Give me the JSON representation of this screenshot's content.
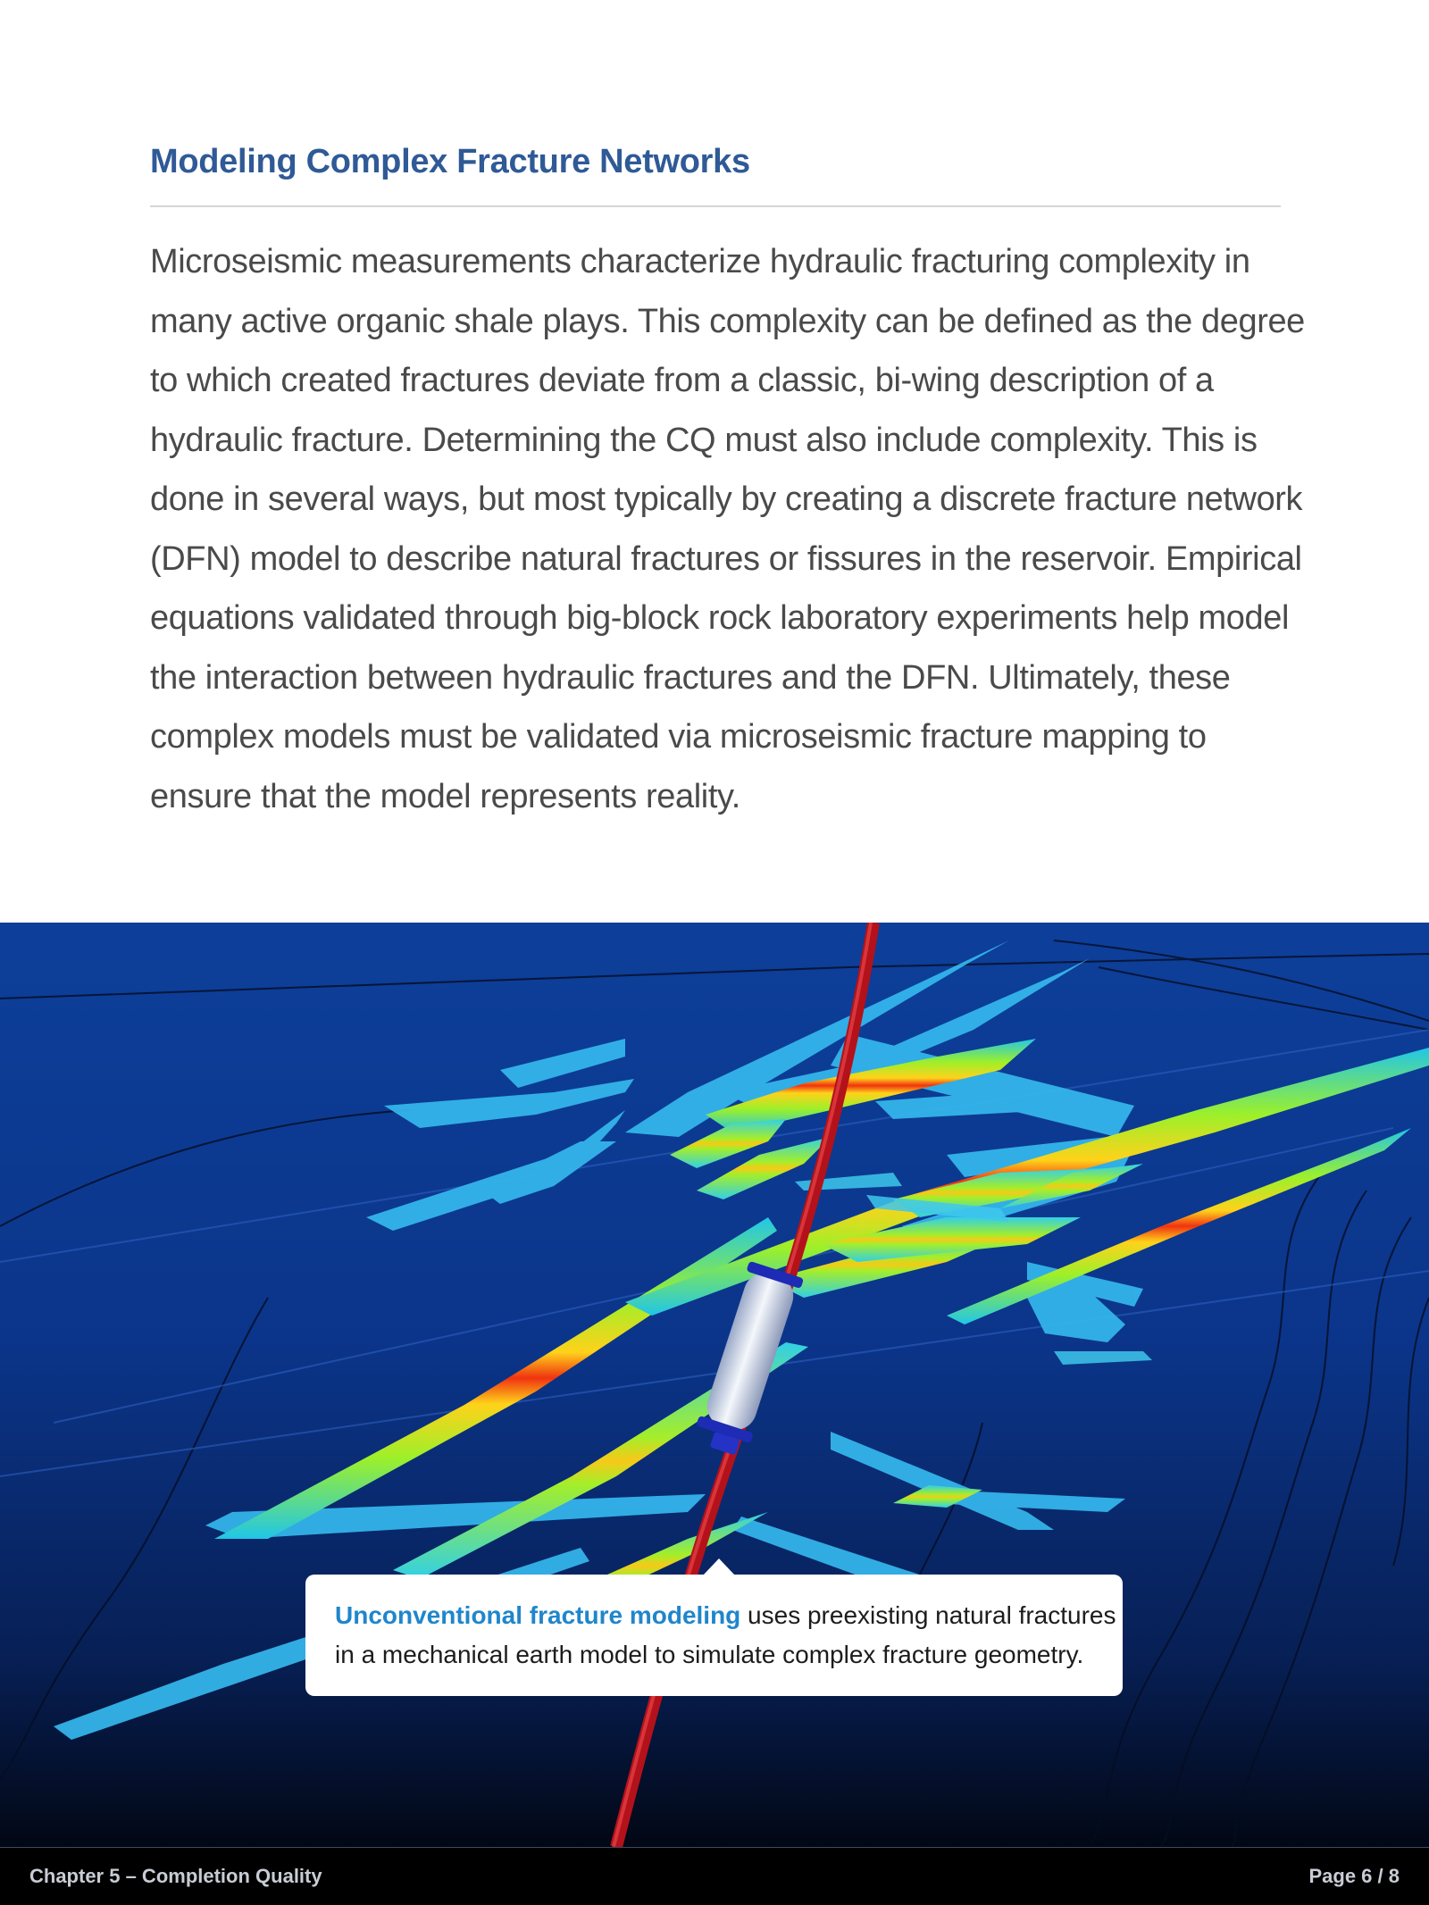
{
  "section": {
    "heading": "Modeling Complex Fracture Networks",
    "body": "Microseismic measurements characterize hydraulic fracturing complexity in many active organic shale plays. This complexity can be defined as the degree to which created fractures deviate from a classic, bi-wing description of a hydraulic fracture. Determining the CQ must also include complexity. This is done in several ways, but most typically by creating a discrete fracture network (DFN) model to describe natural fractures or fissures in the reservoir. Empirical equations validated through big-block rock laboratory experiments help model the interaction between hydraulic fractures and the DFN. Ultimately, these complex models must be validated via microseismic fracture mapping to ensure that the model represents reality."
  },
  "figure": {
    "caption_emphasis": "Unconventional fracture modeling",
    "caption_rest": " uses preexisting natural fractures in a mechanical earth model to simulate complex fracture geometry."
  },
  "footer": {
    "chapter": "Chapter 5 – Completion Quality",
    "page": "Page 6 / 8"
  },
  "colors": {
    "heading": "#2f5a96",
    "caption_emphasis": "#1f86cc",
    "wellbore": "#d61f1f",
    "background_deep": "#0a2a6e"
  }
}
